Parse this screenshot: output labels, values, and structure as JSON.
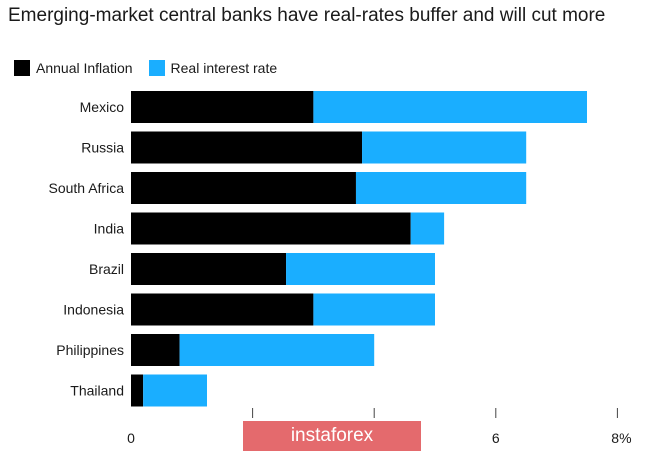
{
  "chart_data": {
    "type": "bar",
    "orientation": "horizontal",
    "stacked": true,
    "title": "Emerging-market central banks have real-rates buffer and will cut more",
    "categories": [
      "Mexico",
      "Russia",
      "South Africa",
      "India",
      "Brazil",
      "Indonesia",
      "Philippines",
      "Thailand"
    ],
    "series": [
      {
        "name": "Annual Inflation",
        "color": "#000000",
        "values": [
          3.0,
          3.8,
          3.7,
          4.6,
          2.55,
          3.0,
          0.8,
          0.2
        ]
      },
      {
        "name": "Real interest rate",
        "color": "#1aaeff",
        "values": [
          4.5,
          2.7,
          2.8,
          0.55,
          2.45,
          2.0,
          3.2,
          1.05
        ]
      }
    ],
    "x_ticks": [
      "0",
      "",
      "",
      "6",
      "8%"
    ],
    "x_tick_values": [
      0,
      2,
      4,
      6,
      8
    ],
    "xlim": [
      0,
      8
    ],
    "grid": false,
    "legend_position": "top-left"
  },
  "watermark": "instaforex"
}
